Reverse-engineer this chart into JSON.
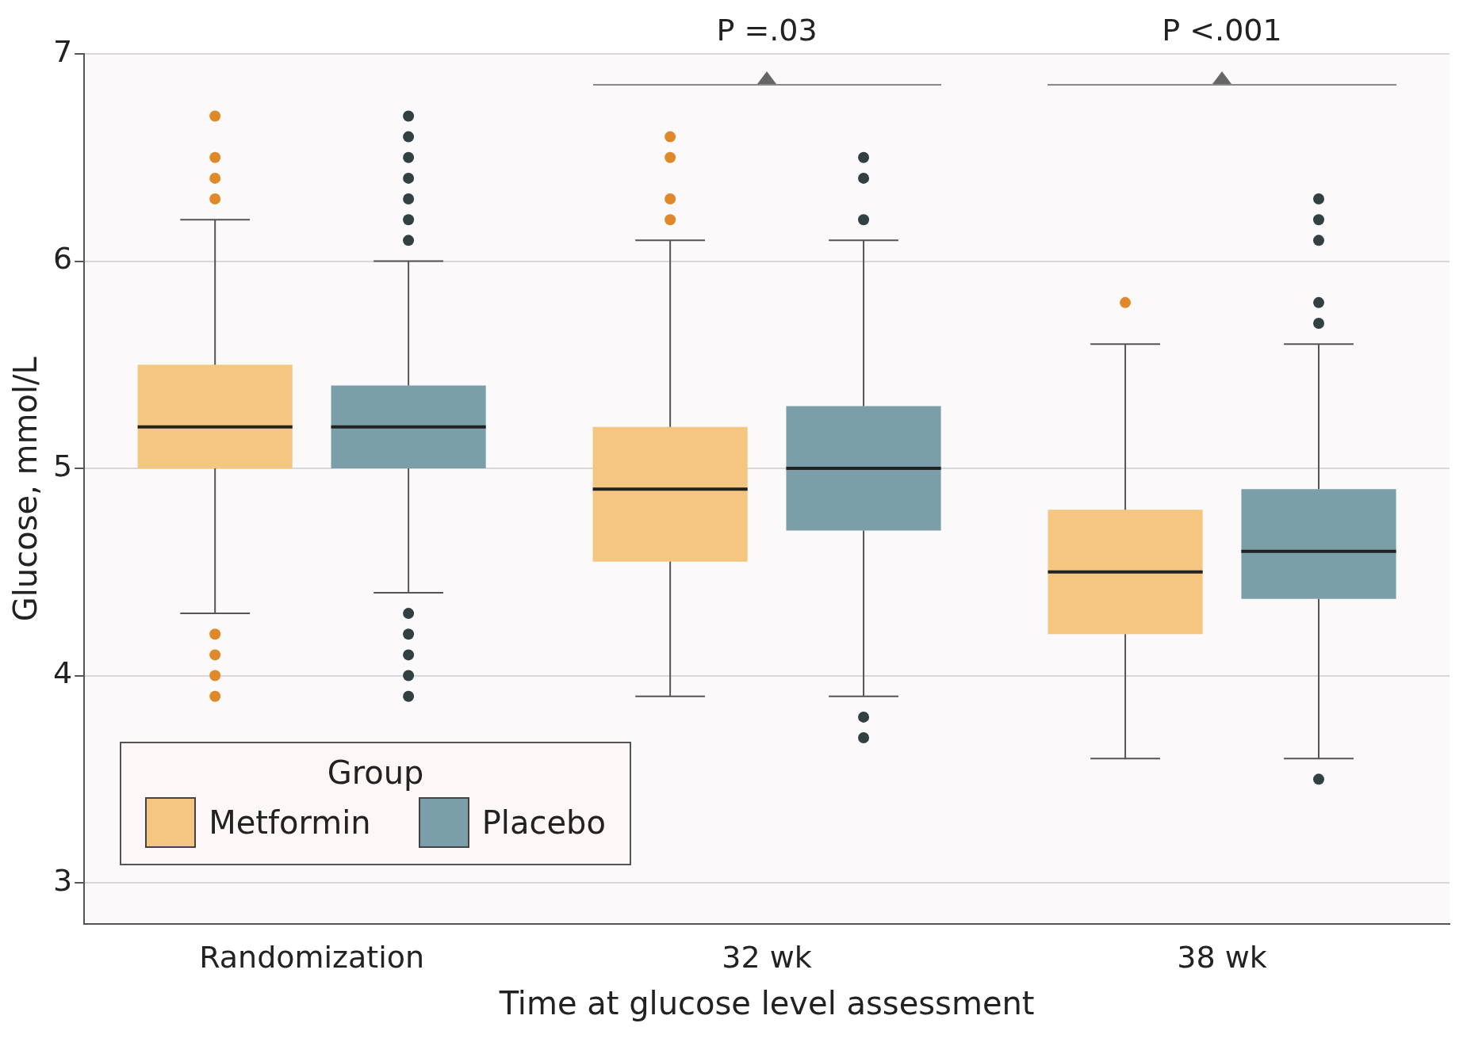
{
  "chart_data": {
    "type": "box",
    "xlabel": "Time at glucose level assessment",
    "ylabel": "Glucose, mmol/L",
    "legend_title": "Group",
    "legend": "bottom left",
    "categories": [
      "Randomization",
      "32 wk",
      "38 wk"
    ],
    "ylim": [
      2.8,
      7
    ],
    "yticks": [
      3,
      4,
      5,
      6,
      7
    ],
    "grid": "y",
    "series": [
      {
        "name": "Metformin",
        "color": "#f5c67f",
        "boxes": [
          {
            "low": 4.3,
            "q1": 5.0,
            "median": 5.2,
            "q3": 5.5,
            "high": 6.2,
            "outliers": [
              6.7,
              6.5,
              6.4,
              6.3,
              4.2,
              4.1,
              4.0,
              3.9
            ]
          },
          {
            "low": 3.9,
            "q1": 4.55,
            "median": 4.9,
            "q3": 5.2,
            "high": 6.1,
            "outliers": [
              6.6,
              6.5,
              6.3,
              6.2
            ]
          },
          {
            "low": 3.6,
            "q1": 4.2,
            "median": 4.5,
            "q3": 4.8,
            "high": 5.6,
            "outliers": [
              5.8
            ]
          }
        ]
      },
      {
        "name": "Placebo",
        "color": "#7b9fa8",
        "boxes": [
          {
            "low": 4.4,
            "q1": 5.0,
            "median": 5.2,
            "q3": 5.4,
            "high": 6.0,
            "outliers": [
              6.7,
              6.6,
              6.5,
              6.4,
              6.3,
              6.2,
              6.1,
              4.3,
              4.2,
              4.1,
              4.0,
              3.9
            ]
          },
          {
            "low": 3.9,
            "q1": 4.7,
            "median": 5.0,
            "q3": 5.3,
            "high": 6.1,
            "outliers": [
              6.5,
              6.4,
              6.2,
              3.8,
              3.7
            ]
          },
          {
            "low": 3.6,
            "q1": 4.37,
            "median": 4.6,
            "q3": 4.9,
            "high": 5.6,
            "outliers": [
              6.3,
              6.2,
              6.1,
              5.8,
              5.7,
              3.5
            ]
          }
        ]
      }
    ],
    "annotations": [
      "P =.03",
      "P <.001"
    ]
  }
}
